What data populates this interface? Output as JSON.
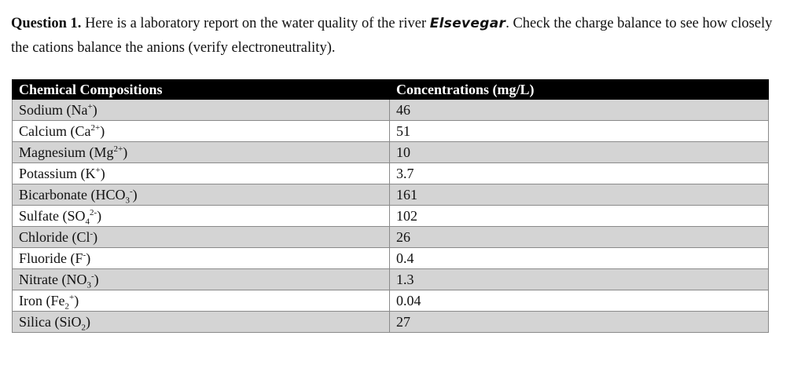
{
  "question": {
    "label": "Question 1.",
    "text_before": " Here is a laboratory report on the water quality of the river ",
    "river": "Elsevegar",
    "text_after": ". Check the charge balance to see how closely the cations balance the anions (verify electroneutrality)."
  },
  "table": {
    "headers": [
      "Chemical Compositions",
      "Concentrations (mg/L)"
    ],
    "rows": [
      {
        "name": "Sodium (Na",
        "sub": "",
        "sup": "+",
        "close": ")",
        "value": "46"
      },
      {
        "name": "Calcium (Ca",
        "sub": "",
        "sup": "2+",
        "close": ")",
        "value": "51"
      },
      {
        "name": "Magnesium (Mg",
        "sub": "",
        "sup": "2+",
        "close": ")",
        "value": "10"
      },
      {
        "name": "Potassium (K",
        "sub": "",
        "sup": "+",
        "close": ")",
        "value": "3.7"
      },
      {
        "name": "Bicarbonate (HCO",
        "sub": "3",
        "sup": "-",
        "close": ")",
        "value": "161"
      },
      {
        "name": "Sulfate (SO",
        "sub": "4",
        "sup": "2-",
        "close": ")",
        "value": "102"
      },
      {
        "name": "Chloride (Cl",
        "sub": "",
        "sup": "-",
        "close": ")",
        "value": "26"
      },
      {
        "name": "Fluoride (F",
        "sub": "",
        "sup": "-",
        "close": ")",
        "value": "0.4"
      },
      {
        "name": "Nitrate (NO",
        "sub": "3",
        "sup": "-",
        "close": ")",
        "value": "1.3"
      },
      {
        "name": "Iron (Fe",
        "sub": "2",
        "sup": "+",
        "close": ")",
        "value": "0.04"
      },
      {
        "name": "Silica (SiO",
        "sub": "2",
        "sup": "",
        "close": ")",
        "value": "27"
      }
    ]
  }
}
